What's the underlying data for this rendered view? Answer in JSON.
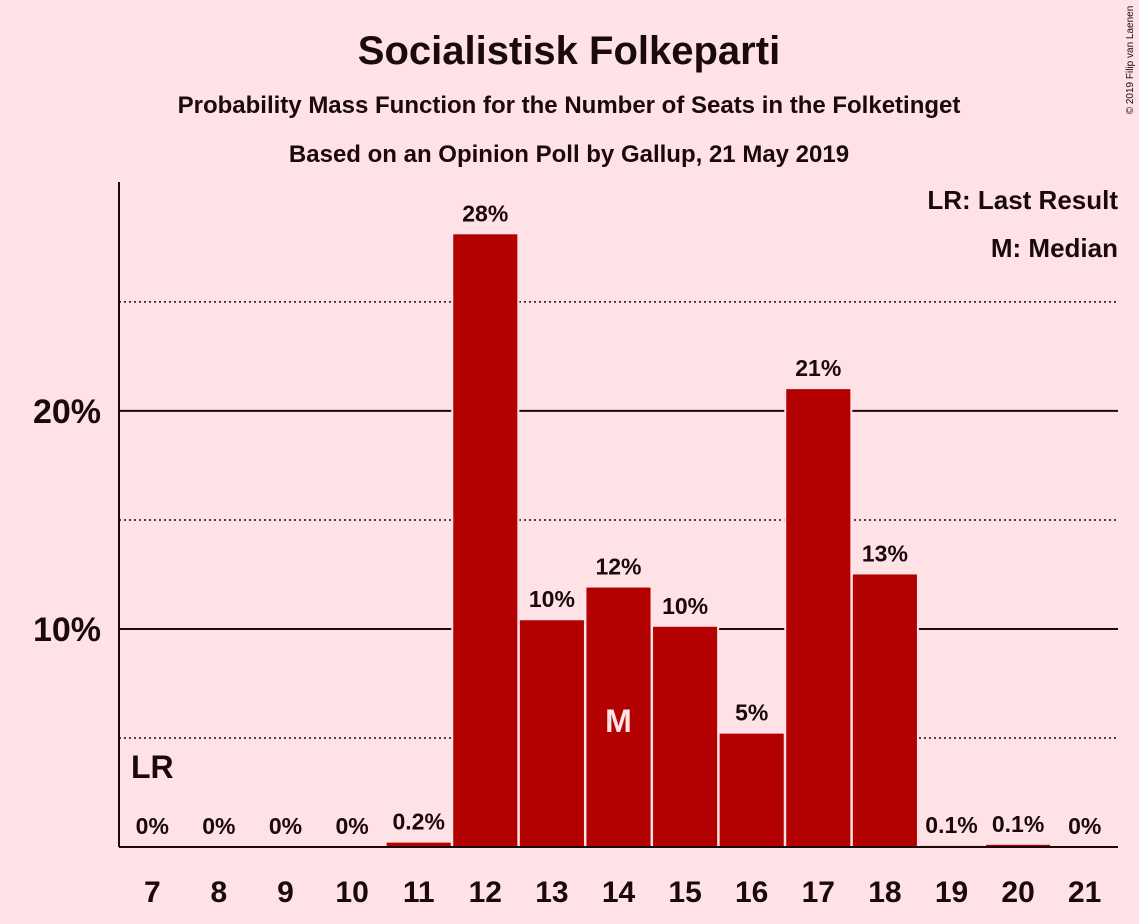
{
  "chart_data": {
    "type": "bar",
    "title": "Socialistisk Folkeparti",
    "subtitle": "Probability Mass Function for the Number of Seats in the Folketinget",
    "subtitle2": "Based on an Opinion Poll by Gallup, 21 May 2019",
    "categories": [
      "7",
      "8",
      "9",
      "10",
      "11",
      "12",
      "13",
      "14",
      "15",
      "16",
      "17",
      "18",
      "19",
      "20",
      "21"
    ],
    "values": [
      0,
      0,
      0,
      0,
      0.2,
      28.1,
      10.4,
      11.9,
      10.1,
      5.2,
      21.0,
      12.5,
      0.05,
      0.1,
      0
    ],
    "value_labels": [
      "0%",
      "0%",
      "0%",
      "0%",
      "0.2%",
      "28%",
      "10%",
      "12%",
      "10%",
      "5%",
      "21%",
      "13%",
      "0.1%",
      "0.1%",
      "0%"
    ],
    "ylim": [
      0,
      30.5
    ],
    "yticks": [
      {
        "value": 10,
        "label": "10%"
      },
      {
        "value": 20,
        "label": "20%"
      }
    ],
    "minor_gridlines": [
      5,
      15,
      25
    ],
    "last_result_category": "7",
    "last_result_label": "LR",
    "median_category": "14",
    "median_label": "M",
    "legend": [
      "LR: Last Result",
      "M: Median"
    ],
    "legend_position": "top-right",
    "copyright": "© 2019 Filip van Laenen",
    "colors": {
      "bar": "#B30000",
      "background": "#FFE2E6",
      "text": "#1a0a0a",
      "median_text": "#FFE2E6"
    }
  }
}
